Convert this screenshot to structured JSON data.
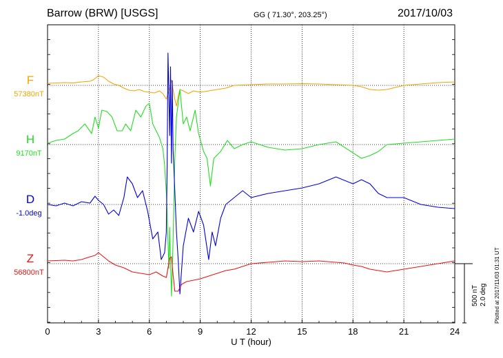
{
  "header": {
    "station": "Barrow (BRW)  [USGS]",
    "coords": "GG ( 71.30°, 203.25°)",
    "date": "2017/10/03"
  },
  "plotted_note": "Plotted at 2017/11/03 01:31  UT",
  "chart_data": {
    "type": "line",
    "title": "Barrow (BRW)  [USGS]",
    "xlabel": "U T (hour)",
    "xlim": [
      0,
      24
    ],
    "xticks": [
      "0",
      "3",
      "6",
      "9",
      "12",
      "15",
      "18",
      "21",
      "24"
    ],
    "grid": true,
    "scale_bar": {
      "label1": "500 nT",
      "label2": "2.0 deg"
    },
    "series": [
      {
        "name": "F",
        "baseline_label": "57380nT",
        "color": "#f5a300",
        "baseline_nt": 57380,
        "x": [
          0,
          1,
          1.5,
          2,
          2.5,
          2.7,
          3.0,
          3.3,
          3.6,
          3.9,
          4.2,
          4.5,
          4.8,
          5.1,
          5.4,
          5.7,
          6.0,
          6.3,
          6.6,
          6.8,
          7.0,
          7.1,
          7.2,
          7.3,
          7.4,
          7.5,
          7.6,
          7.7,
          7.8,
          8.0,
          8.3,
          8.6,
          9.0,
          9.5,
          10.0,
          10.5,
          11,
          12,
          13,
          14,
          15,
          16,
          17,
          18,
          18.5,
          19,
          19.5,
          20,
          20.5,
          21,
          22,
          23,
          24
        ],
        "y": [
          15,
          20,
          18,
          25,
          30,
          40,
          70,
          60,
          30,
          10,
          0,
          -20,
          -35,
          -40,
          -30,
          -45,
          -50,
          -55,
          -40,
          -60,
          -100,
          -60,
          -20,
          40,
          -30,
          -100,
          -150,
          -80,
          -30,
          -40,
          -60,
          -40,
          -50,
          -40,
          -30,
          -20,
          0,
          5,
          10,
          10,
          12,
          10,
          5,
          0,
          -10,
          -30,
          -35,
          -30,
          -15,
          0,
          10,
          20,
          25
        ]
      },
      {
        "name": "H",
        "baseline_label": "9170nT",
        "color": "#22dd22",
        "baseline_nt": 9170,
        "x": [
          0,
          0.5,
          1.0,
          1.5,
          1.8,
          2.2,
          2.6,
          2.8,
          3.0,
          3.2,
          3.5,
          3.8,
          4.1,
          4.4,
          4.6,
          4.9,
          5.2,
          5.5,
          5.8,
          6.0,
          6.2,
          6.4,
          6.6,
          6.8,
          6.9,
          7.0,
          7.05,
          7.1,
          7.15,
          7.2,
          7.25,
          7.3,
          7.35,
          7.4,
          7.45,
          7.5,
          7.6,
          7.7,
          7.8,
          8.0,
          8.2,
          8.4,
          8.7,
          8.9,
          9.2,
          9.4,
          9.6,
          9.8,
          10.2,
          10.6,
          11,
          11.5,
          12,
          13,
          14,
          15,
          16,
          17,
          18,
          18.5,
          19,
          19.5,
          20,
          21,
          22,
          23,
          24
        ],
        "y": [
          10,
          30,
          40,
          80,
          100,
          150,
          80,
          200,
          120,
          250,
          240,
          200,
          100,
          100,
          150,
          100,
          250,
          200,
          280,
          300,
          150,
          100,
          50,
          -30,
          -150,
          -350,
          -500,
          -700,
          -900,
          -600,
          -850,
          -1100,
          -900,
          -700,
          -400,
          -100,
          200,
          300,
          400,
          150,
          200,
          100,
          250,
          80,
          -50,
          -100,
          -300,
          -100,
          -50,
          30,
          -30,
          0,
          20,
          -20,
          -40,
          -30,
          0,
          20,
          -60,
          -100,
          -80,
          -50,
          0,
          10,
          20,
          30,
          40
        ]
      },
      {
        "name": "D",
        "baseline_label": "-1.0deg",
        "color": "#0000dd",
        "baseline_nt": -1.0,
        "x": [
          0,
          0.5,
          1.0,
          1.5,
          2.0,
          2.5,
          2.8,
          3.0,
          3.3,
          3.6,
          3.9,
          4.2,
          4.5,
          4.7,
          5.0,
          5.3,
          5.6,
          5.9,
          6.2,
          6.5,
          6.7,
          6.9,
          7.0,
          7.05,
          7.1,
          7.15,
          7.2,
          7.25,
          7.3,
          7.35,
          7.4,
          7.5,
          7.6,
          7.7,
          7.8,
          8.0,
          8.3,
          8.6,
          8.9,
          9.2,
          9.5,
          9.7,
          9.9,
          10.2,
          10.5,
          11,
          11.5,
          12,
          13,
          14,
          15,
          16,
          17,
          18,
          18.5,
          19,
          19.5,
          20,
          21,
          22,
          23,
          24
        ],
        "y": [
          0,
          -10,
          10,
          -10,
          20,
          10,
          60,
          30,
          0,
          -70,
          -40,
          -80,
          50,
          200,
          150,
          50,
          100,
          -50,
          -250,
          -200,
          -400,
          -350,
          -200,
          300,
          1100,
          800,
          500,
          1000,
          300,
          900,
          400,
          100,
          -200,
          -400,
          -650,
          -300,
          -100,
          -200,
          -50,
          -150,
          -400,
          -200,
          -300,
          -100,
          0,
          50,
          100,
          50,
          80,
          100,
          120,
          150,
          200,
          150,
          180,
          150,
          80,
          50,
          50,
          0,
          -20,
          -30
        ]
      },
      {
        "name": "Z",
        "baseline_label": "56800nT",
        "color": "#ee1111",
        "baseline_nt": 56800,
        "x": [
          0,
          1,
          1.5,
          2.0,
          2.5,
          2.8,
          3.0,
          3.3,
          3.6,
          4.0,
          4.5,
          5.0,
          5.5,
          6.0,
          6.4,
          6.8,
          7.0,
          7.2,
          7.3,
          7.4,
          7.5,
          7.7,
          7.9,
          8.2,
          8.6,
          9.0,
          9.5,
          10,
          10.5,
          11,
          11.5,
          12,
          13,
          14,
          15,
          16,
          17,
          17.5,
          18,
          18.5,
          19,
          19.5,
          20,
          21,
          22,
          23,
          24
        ],
        "y": [
          20,
          25,
          20,
          30,
          50,
          60,
          80,
          50,
          20,
          -10,
          -30,
          -60,
          -70,
          -80,
          -60,
          -90,
          -100,
          40,
          50,
          -80,
          -200,
          -200,
          -150,
          -130,
          -120,
          -110,
          -90,
          -70,
          -50,
          -40,
          -20,
          0,
          10,
          20,
          15,
          20,
          10,
          5,
          -10,
          -20,
          -40,
          -50,
          -60,
          -40,
          -20,
          0,
          20
        ]
      }
    ]
  }
}
